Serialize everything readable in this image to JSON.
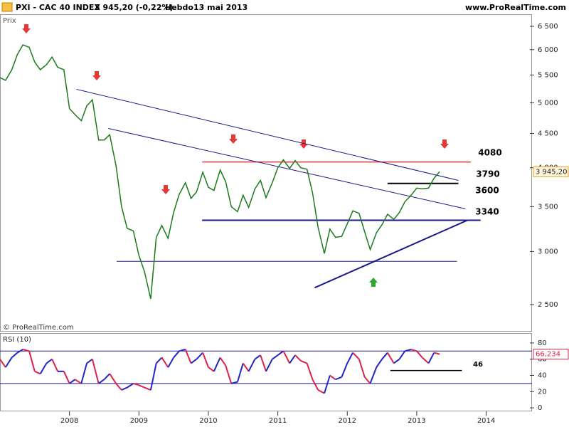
{
  "header": {
    "symbol": "PXI - CAC 40 INDEX",
    "quote": "3 945,20 (-0,22%)",
    "period": "Hebdo",
    "date": "13 mai 2013",
    "site": "www.ProRealTime.com"
  },
  "annotations": [
    "4080",
    "3790",
    "3600",
    "3340",
    "46"
  ],
  "chart_data": [
    {
      "type": "line",
      "title": "Prix",
      "credit": "© ProRealTime.com",
      "log_scale": true,
      "x": [
        2007.0,
        2007.08,
        2007.17,
        2007.25,
        2007.33,
        2007.42,
        2007.5,
        2007.58,
        2007.67,
        2007.75,
        2007.83,
        2007.92,
        2008.0,
        2008.08,
        2008.17,
        2008.25,
        2008.33,
        2008.42,
        2008.5,
        2008.58,
        2008.67,
        2008.75,
        2008.83,
        2008.92,
        2009.0,
        2009.08,
        2009.17,
        2009.25,
        2009.33,
        2009.42,
        2009.5,
        2009.58,
        2009.67,
        2009.75,
        2009.83,
        2009.92,
        2010.0,
        2010.08,
        2010.17,
        2010.25,
        2010.33,
        2010.42,
        2010.5,
        2010.58,
        2010.67,
        2010.75,
        2010.83,
        2010.92,
        2011.0,
        2011.08,
        2011.17,
        2011.25,
        2011.33,
        2011.42,
        2011.5,
        2011.58,
        2011.67,
        2011.75,
        2011.83,
        2011.92,
        2012.0,
        2012.08,
        2012.17,
        2012.25,
        2012.33,
        2012.42,
        2012.5,
        2012.58,
        2012.67,
        2012.75,
        2012.83,
        2012.92,
        2013.0,
        2013.08,
        2013.17,
        2013.25,
        2013.33
      ],
      "series": [
        {
          "color": "#1b7a1b",
          "values": [
            5450,
            5400,
            5600,
            5900,
            6100,
            6050,
            5750,
            5600,
            5700,
            5850,
            5650,
            5600,
            4900,
            4800,
            4700,
            4950,
            5050,
            4400,
            4400,
            4480,
            4030,
            3500,
            3250,
            3220,
            2960,
            2800,
            2550,
            3150,
            3280,
            3140,
            3430,
            3650,
            3800,
            3600,
            3680,
            3940,
            3740,
            3700,
            3970,
            3810,
            3500,
            3440,
            3640,
            3490,
            3720,
            3830,
            3610,
            3800,
            4000,
            4110,
            3990,
            4100,
            4000,
            3980,
            3670,
            3260,
            2980,
            3240,
            3150,
            3160,
            3300,
            3450,
            3420,
            3210,
            3020,
            3200,
            3290,
            3410,
            3350,
            3430,
            3560,
            3640,
            3730,
            3720,
            3730,
            3860,
            3945.2
          ]
        }
      ],
      "xlim": [
        2007.0,
        2014.66
      ],
      "xticks": [
        2008,
        2009,
        2010,
        2011,
        2012,
        2013,
        2014
      ],
      "ylim": [
        2284,
        6776
      ],
      "yticks": [
        {
          "value": 2500,
          "label": "2 500"
        },
        {
          "value": 3000,
          "label": "3 000"
        },
        {
          "value": 3500,
          "label": "3 500"
        },
        {
          "value": 4000,
          "label": "4 000"
        },
        {
          "value": 4500,
          "label": "4 500"
        },
        {
          "value": 5000,
          "label": "5 000"
        },
        {
          "value": 5500,
          "label": "5 500"
        },
        {
          "value": 6000,
          "label": "6 000"
        },
        {
          "value": 6500,
          "label": "6 500"
        }
      ],
      "last_value": {
        "value": 3945.2,
        "label": "3 945,20"
      },
      "lines": [
        {
          "color": "#e53935",
          "width": 1.5,
          "x": [
            2009.91,
            2013.78
          ],
          "y": [
            4080,
            4080
          ]
        },
        {
          "color": "#000000",
          "width": 2,
          "x": [
            2012.58,
            2013.6
          ],
          "y": [
            3790,
            3790
          ]
        },
        {
          "color": "#1a1a8c",
          "width": 2,
          "x": [
            2009.91,
            2013.92
          ],
          "y": [
            3340,
            3340
          ]
        },
        {
          "color": "#1a1a8c",
          "width": 1,
          "x": [
            2008.68,
            2013.58
          ],
          "y": [
            2900,
            2900
          ]
        },
        {
          "color": "#1a1a8c",
          "width": 2,
          "x": [
            2011.53,
            2013.73
          ],
          "y": [
            2649,
            3340
          ]
        },
        {
          "color": "#1a1a8c",
          "width": 1,
          "x": [
            2008.1,
            2013.6
          ],
          "y": [
            5237,
            3830
          ]
        },
        {
          "color": "#1a1a8c",
          "width": 1,
          "x": [
            2008.56,
            2013.7
          ],
          "y": [
            4578,
            3474
          ]
        }
      ]
    },
    {
      "type": "rsi",
      "title": "RSI (10)",
      "up_color": "#2323c8",
      "down_color": "#e0204a",
      "x": [
        2007.0,
        2007.08,
        2007.17,
        2007.25,
        2007.33,
        2007.42,
        2007.5,
        2007.58,
        2007.67,
        2007.75,
        2007.83,
        2007.92,
        2008.0,
        2008.08,
        2008.17,
        2008.25,
        2008.33,
        2008.42,
        2008.5,
        2008.58,
        2008.67,
        2008.75,
        2008.83,
        2008.92,
        2009.0,
        2009.08,
        2009.17,
        2009.25,
        2009.33,
        2009.42,
        2009.5,
        2009.58,
        2009.67,
        2009.75,
        2009.83,
        2009.92,
        2010.0,
        2010.08,
        2010.17,
        2010.25,
        2010.33,
        2010.42,
        2010.5,
        2010.58,
        2010.67,
        2010.75,
        2010.83,
        2010.92,
        2011.0,
        2011.08,
        2011.17,
        2011.25,
        2011.33,
        2011.42,
        2011.5,
        2011.58,
        2011.67,
        2011.75,
        2011.83,
        2011.92,
        2012.0,
        2012.08,
        2012.17,
        2012.25,
        2012.33,
        2012.42,
        2012.5,
        2012.58,
        2012.67,
        2012.75,
        2012.83,
        2012.92,
        2013.0,
        2013.08,
        2013.17,
        2013.25,
        2013.33
      ],
      "values": [
        60,
        50,
        62,
        68,
        72,
        70,
        45,
        42,
        55,
        60,
        45,
        45,
        30,
        35,
        30,
        55,
        60,
        30,
        35,
        42,
        30,
        22,
        25,
        30,
        28,
        25,
        22,
        55,
        62,
        50,
        62,
        70,
        72,
        55,
        60,
        68,
        50,
        45,
        62,
        52,
        30,
        32,
        55,
        45,
        60,
        65,
        45,
        60,
        65,
        70,
        55,
        65,
        58,
        55,
        35,
        22,
        18,
        40,
        35,
        38,
        55,
        68,
        60,
        38,
        30,
        50,
        60,
        68,
        55,
        60,
        70,
        72,
        70,
        62,
        55,
        68,
        66.234
      ],
      "xlim": [
        2007.0,
        2014.66
      ],
      "ylim": [
        -4.3,
        92.2
      ],
      "yticks": [
        0,
        20,
        40,
        60,
        80
      ],
      "levels": [
        30,
        70
      ],
      "level_color": "#1a1a8c",
      "last_value": {
        "value": 66.234,
        "label": "66,234"
      },
      "lines": [
        {
          "color": "#000000",
          "width": 1.5,
          "x": [
            2012.62,
            2013.65
          ],
          "y": [
            46,
            46
          ]
        }
      ]
    }
  ]
}
